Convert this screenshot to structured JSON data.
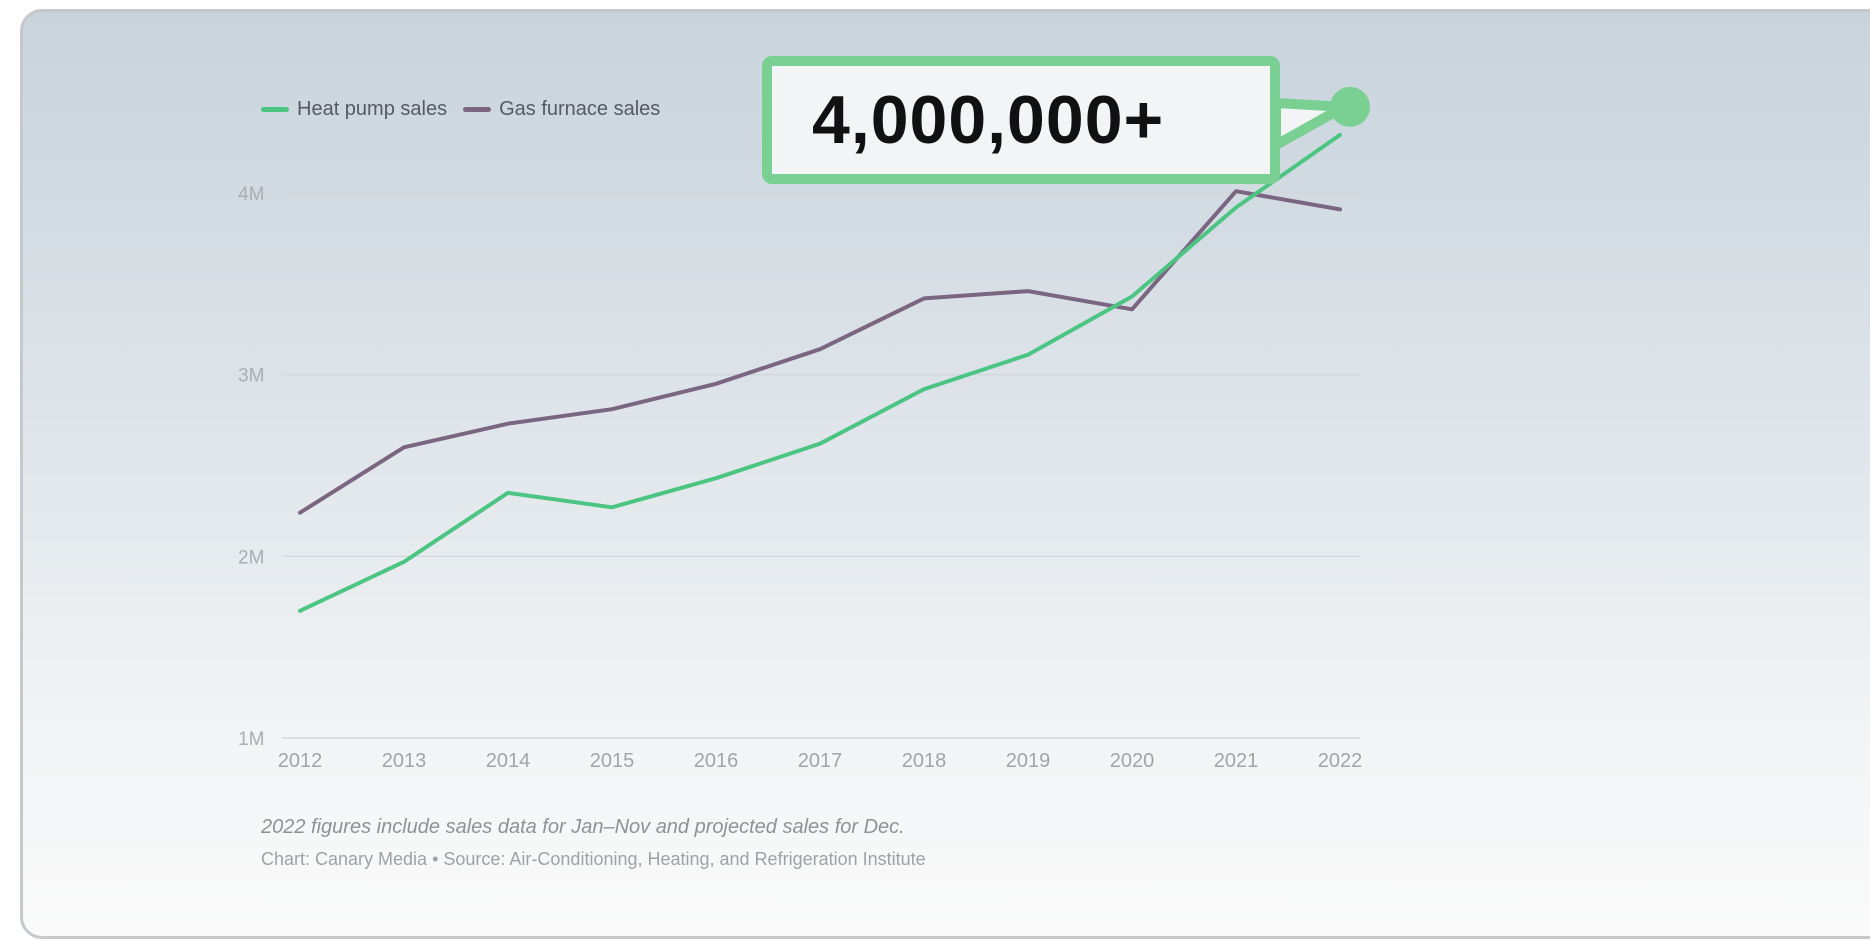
{
  "chart_data": {
    "type": "line",
    "x": [
      2012,
      2013,
      2014,
      2015,
      2016,
      2017,
      2018,
      2019,
      2020,
      2021,
      2022
    ],
    "series": [
      {
        "name": "Heat pump sales",
        "color": "#4cc583",
        "values": [
          1700000,
          1970000,
          2350000,
          2270000,
          2430000,
          2620000,
          2920000,
          3110000,
          3430000,
          3920000,
          4320000
        ]
      },
      {
        "name": "Gas furnace sales",
        "color": "#7b6681",
        "values": [
          2240000,
          2600000,
          2730000,
          2810000,
          2950000,
          3140000,
          3420000,
          3460000,
          3360000,
          4010000,
          3910000
        ]
      }
    ],
    "yticks": [
      {
        "value": 1000000,
        "label": "1M"
      },
      {
        "value": 2000000,
        "label": "2M"
      },
      {
        "value": 3000000,
        "label": "3M"
      },
      {
        "value": 4000000,
        "label": "4M"
      }
    ],
    "ylim": [
      1000000,
      4500000
    ],
    "grid": true,
    "legend": "top-left",
    "annotation": {
      "text": "4,000,000+",
      "series": "Heat pump sales",
      "x": 2022,
      "color": "#79d092"
    },
    "note": "2022 figures include sales data for Jan–Nov and projected sales for Dec.",
    "source": "Chart: Canary Media • Source: Air-Conditioning, Heating, and Refrigeration Institute"
  }
}
